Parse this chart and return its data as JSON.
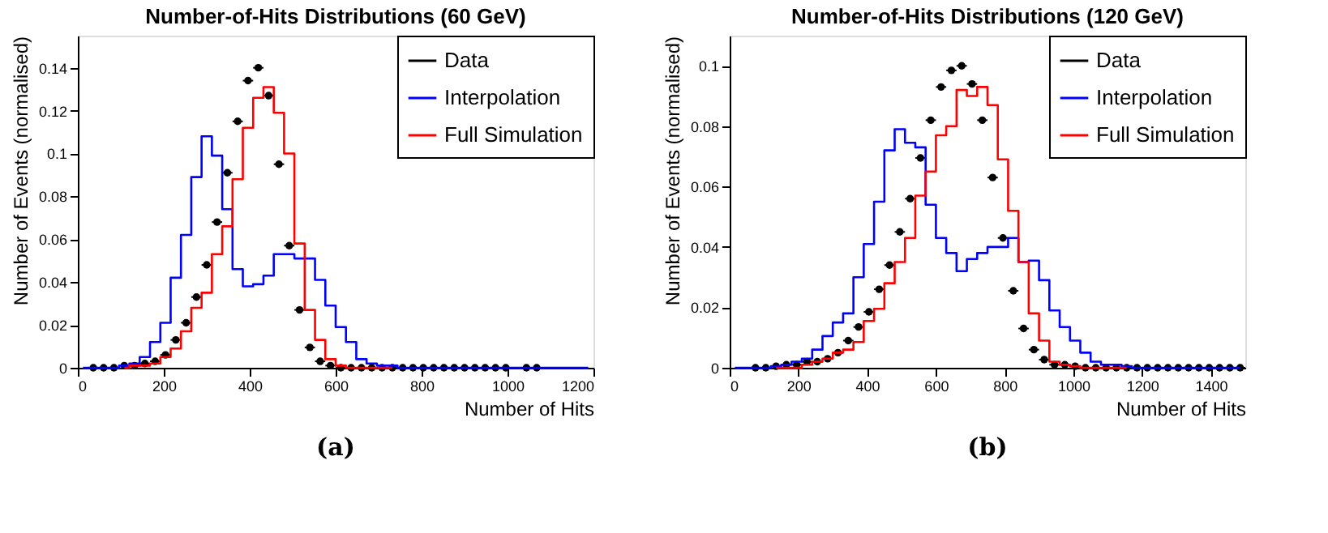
{
  "chart_data": [
    {
      "type": "step",
      "title": "Number-of-Hits Distributions (60 GeV)",
      "xlabel": "Number of Hits",
      "ylabel": "Number of Events (normalised)",
      "annotations": [
        "(a)"
      ],
      "x": [
        12,
        36,
        60,
        84,
        108,
        132,
        156,
        180,
        204,
        228,
        252,
        276,
        300,
        324,
        348,
        372,
        396,
        420,
        444,
        468,
        492,
        516,
        540,
        564,
        588,
        612,
        636,
        660,
        684,
        708,
        732,
        756,
        780,
        804,
        828,
        852,
        876,
        900,
        924,
        948,
        972,
        996,
        1020,
        1044,
        1068,
        1092,
        1116,
        1140,
        1164,
        1188
      ],
      "series": [
        {
          "name": "Data",
          "type": "scatter",
          "marker": "circle",
          "color": "#000000",
          "values": [
            null,
            0,
            0,
            0,
            0.001,
            0.001,
            0.002,
            0.003,
            0.006,
            0.013,
            0.021,
            0.033,
            0.048,
            0.068,
            0.091,
            0.115,
            0.134,
            0.14,
            0.127,
            0.095,
            0.057,
            0.027,
            0.0095,
            0.003,
            0.001,
            0,
            0,
            0,
            0,
            0,
            0,
            0,
            0,
            0,
            0,
            0,
            0,
            0,
            0,
            0,
            0,
            0,
            null,
            0,
            0,
            null,
            null,
            null,
            null,
            null
          ],
          "xerrors": [
            null,
            12,
            12,
            12,
            12,
            12,
            12,
            12,
            12,
            12,
            12,
            12,
            12,
            12,
            12,
            12,
            12,
            12,
            12,
            12,
            12,
            12,
            12,
            12,
            12,
            12,
            12,
            12,
            12,
            12,
            12,
            12,
            12,
            12,
            12,
            12,
            12,
            12,
            12,
            12,
            12,
            12,
            null,
            12,
            12,
            null,
            null,
            null,
            null,
            null
          ]
        },
        {
          "name": "Interpolation",
          "color": "#0000ff",
          "values": [
            0,
            0,
            0,
            0,
            0.001,
            0.002,
            0.005,
            0.012,
            0.021,
            0.042,
            0.062,
            0.089,
            0.108,
            0.099,
            0.074,
            0.046,
            0.038,
            0.039,
            0.043,
            0.053,
            0.053,
            0.051,
            0.051,
            0.041,
            0.029,
            0.019,
            0.012,
            0.004,
            0.002,
            0.001,
            0.001,
            0,
            0,
            0,
            0,
            0,
            0,
            0,
            0,
            0,
            0,
            0,
            0,
            0,
            0,
            0,
            0,
            0,
            0,
            0
          ]
        },
        {
          "name": "Full Simulation",
          "color": "#ff0000",
          "values": [
            null,
            null,
            null,
            null,
            0,
            0.001,
            0.001,
            0.002,
            0.005,
            0.009,
            0.017,
            0.028,
            0.035,
            0.053,
            0.066,
            0.088,
            0.112,
            0.126,
            0.131,
            0.119,
            0.1,
            0.058,
            0.027,
            0.013,
            0.004,
            0.001,
            0,
            0,
            0,
            0,
            0,
            null,
            null,
            null,
            null,
            null,
            null,
            null,
            null,
            null,
            null,
            null,
            null,
            null,
            null,
            null,
            null,
            null,
            null,
            null
          ]
        }
      ],
      "xlim": [
        0,
        1200
      ],
      "xticks": [
        0,
        200,
        400,
        600,
        800,
        1000,
        1200
      ],
      "ylim": [
        0,
        0.155
      ],
      "yticks": [
        0,
        0.02,
        0.04,
        0.06,
        0.08,
        0.1,
        0.12,
        0.14
      ],
      "legend": "top right",
      "line_style": "solid",
      "grid": false
    },
    {
      "type": "step",
      "title": "Number-of-Hits Distributions (120 GeV)",
      "xlabel": "Number of Hits",
      "ylabel": "Number of Events (normalised)",
      "annotations": [
        "(b)"
      ],
      "x": [
        15,
        45,
        75,
        105,
        135,
        165,
        195,
        225,
        255,
        285,
        315,
        345,
        375,
        405,
        435,
        465,
        495,
        525,
        555,
        585,
        615,
        645,
        675,
        705,
        735,
        765,
        795,
        825,
        855,
        885,
        915,
        945,
        975,
        1005,
        1035,
        1065,
        1095,
        1125,
        1155,
        1185,
        1215,
        1245,
        1275,
        1305,
        1335,
        1365,
        1395,
        1425,
        1455,
        1485
      ],
      "series": [
        {
          "name": "Data",
          "type": "scatter",
          "marker": "circle",
          "color": "#000000",
          "values": [
            null,
            null,
            0,
            0,
            0.0005,
            0.001,
            0.001,
            0.002,
            0.002,
            0.003,
            0.005,
            0.009,
            0.0135,
            0.0185,
            0.026,
            0.034,
            0.045,
            0.056,
            0.0695,
            0.082,
            0.093,
            0.0985,
            0.1,
            0.094,
            0.082,
            0.063,
            0.043,
            0.0255,
            0.013,
            0.006,
            0.0027,
            0.001,
            0.001,
            0.0005,
            0,
            0,
            0,
            0,
            0,
            0,
            0,
            0,
            0,
            0,
            0,
            0,
            0,
            0,
            0,
            0
          ],
          "xerrors": [
            null,
            null,
            15,
            15,
            15,
            15,
            15,
            15,
            15,
            15,
            15,
            15,
            15,
            15,
            15,
            15,
            15,
            15,
            15,
            15,
            15,
            15,
            15,
            15,
            15,
            15,
            15,
            15,
            15,
            15,
            15,
            15,
            15,
            15,
            15,
            15,
            15,
            15,
            15,
            15,
            15,
            15,
            15,
            15,
            15,
            15,
            15,
            15,
            15,
            15
          ]
        },
        {
          "name": "Interpolation",
          "color": "#0000ff",
          "values": [
            0,
            0,
            0,
            0,
            0.0005,
            0.001,
            0.002,
            0.003,
            0.006,
            0.0105,
            0.015,
            0.018,
            0.03,
            0.041,
            0.055,
            0.072,
            0.079,
            0.0745,
            0.073,
            0.054,
            0.043,
            0.038,
            0.032,
            0.036,
            0.038,
            0.04,
            0.04,
            0.043,
            0.035,
            0.0355,
            0.029,
            0.019,
            0.0135,
            0.009,
            0.005,
            0.002,
            0.001,
            0.001,
            0.0005,
            0,
            0,
            0,
            0,
            0,
            0,
            0,
            0,
            0,
            0,
            0
          ]
        },
        {
          "name": "Full Simulation",
          "color": "#ff0000",
          "values": [
            null,
            null,
            null,
            null,
            0,
            0,
            0,
            0.001,
            0.002,
            0.003,
            0.005,
            0.006,
            0.0085,
            0.0155,
            0.0195,
            0.028,
            0.035,
            0.043,
            0.057,
            0.065,
            0.077,
            0.08,
            0.092,
            0.09,
            0.093,
            0.087,
            0.069,
            0.052,
            0.035,
            0.018,
            0.009,
            0.002,
            0.001,
            0.0005,
            0,
            0,
            0,
            0,
            0,
            null,
            null,
            null,
            null,
            null,
            null,
            null,
            null,
            null,
            null,
            null
          ]
        }
      ],
      "xlim": [
        0,
        1500
      ],
      "xticks": [
        0,
        200,
        400,
        600,
        800,
        1000,
        1200,
        1400
      ],
      "ylim": [
        0,
        0.11
      ],
      "yticks": [
        0,
        0.02,
        0.04,
        0.06,
        0.08,
        0.1
      ],
      "legend": "top right",
      "line_style": "solid",
      "grid": false
    }
  ]
}
